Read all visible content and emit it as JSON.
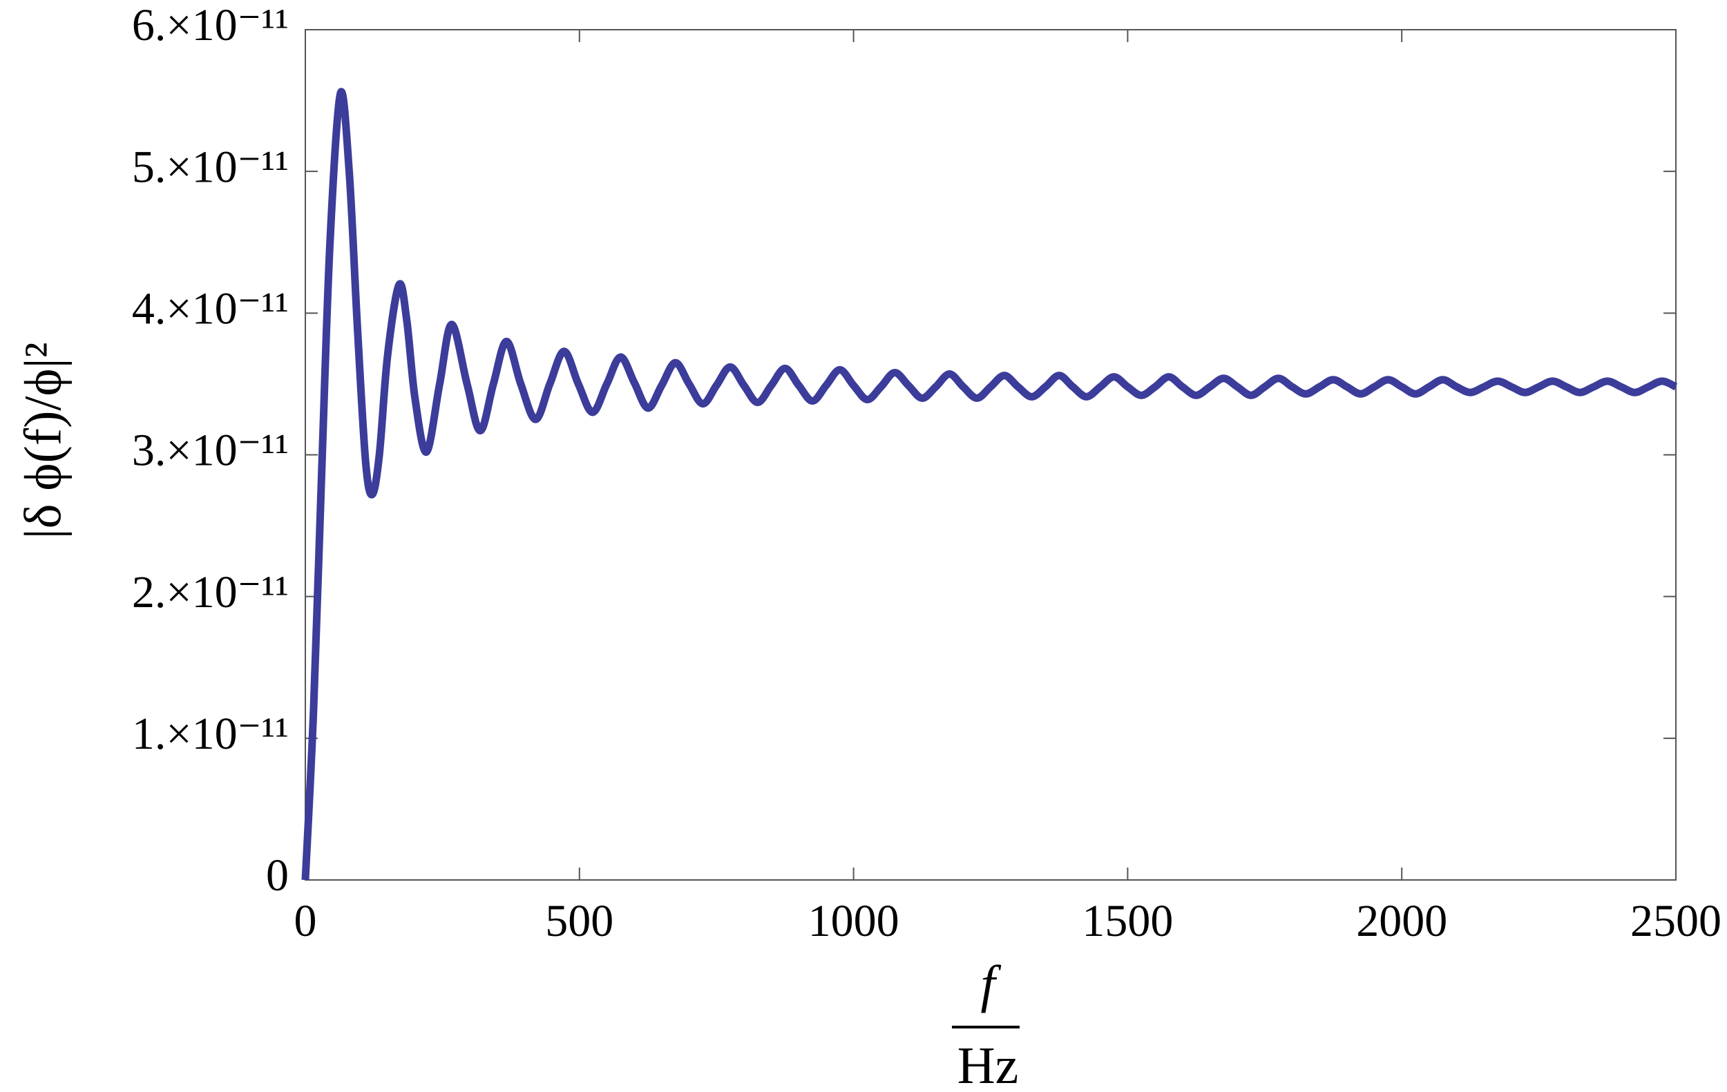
{
  "chart_data": {
    "type": "line",
    "ylabel": "|δ ϕ(f)/ϕ|²",
    "xlabel": {
      "numerator": "f",
      "denominator": "Hz"
    },
    "color": "#3c3c9a",
    "xlim": [
      0,
      2500
    ],
    "xticks": [
      0,
      500,
      1000,
      1500,
      2000,
      2500
    ],
    "ylim": [
      0,
      6e-11
    ],
    "yticks": [
      0,
      {
        "value": 1e-11,
        "label": "1.×10⁻¹¹"
      },
      {
        "value": 2e-11,
        "label": "2.×10⁻¹¹"
      },
      {
        "value": 3e-11,
        "label": "3.×10⁻¹¹"
      },
      {
        "value": 4e-11,
        "label": "4.×10⁻¹¹"
      },
      {
        "value": 5e-11,
        "label": "5.×10⁻¹¹"
      },
      {
        "value": 6e-11,
        "label": "6.×10⁻¹¹"
      }
    ],
    "x": [
      0,
      15,
      30,
      45,
      64,
      80,
      95,
      110,
      122,
      135,
      150,
      171,
      185,
      200,
      221,
      245,
      267,
      295,
      319,
      343,
      367,
      393,
      420,
      446,
      472,
      498,
      524,
      550,
      575,
      600,
      625,
      650,
      675,
      700,
      725,
      750,
      775,
      800,
      825,
      850,
      875,
      900,
      925,
      950,
      975,
      1000,
      1025,
      1050,
      1075,
      1100,
      1125,
      1150,
      1175,
      1200,
      1225,
      1250,
      1275,
      1300,
      1325,
      1350,
      1375,
      1400,
      1425,
      1450,
      1475,
      1500,
      1525,
      1550,
      1575,
      1600,
      1625,
      1650,
      1675,
      1700,
      1725,
      1750,
      1775,
      1800,
      1825,
      1850,
      1875,
      1900,
      1925,
      1950,
      1975,
      2000,
      2025,
      2050,
      2075,
      2100,
      2125,
      2150,
      2175,
      2200,
      2225,
      2250,
      2275,
      2300,
      2325,
      2350,
      2375,
      2400,
      2425,
      2450,
      2475,
      2500
    ],
    "values": [
      0,
      1.2e-11,
      2.9e-11,
      4.5e-11,
      5.55e-11,
      5e-11,
      3.9e-11,
      2.95e-11,
      2.72e-11,
      3e-11,
      3.7e-11,
      4.2e-11,
      3.95e-11,
      3.4e-11,
      3.02e-11,
      3.5e-11,
      3.92e-11,
      3.5e-11,
      3.17e-11,
      3.5e-11,
      3.8e-11,
      3.5e-11,
      3.25e-11,
      3.5e-11,
      3.73e-11,
      3.5e-11,
      3.3e-11,
      3.5e-11,
      3.69e-11,
      3.51e-11,
      3.33e-11,
      3.49e-11,
      3.65e-11,
      3.5e-11,
      3.36e-11,
      3.49e-11,
      3.62e-11,
      3.49e-11,
      3.37e-11,
      3.49e-11,
      3.61e-11,
      3.49e-11,
      3.38e-11,
      3.49e-11,
      3.6e-11,
      3.49e-11,
      3.39e-11,
      3.48e-11,
      3.58e-11,
      3.49e-11,
      3.4e-11,
      3.48e-11,
      3.57e-11,
      3.48e-11,
      3.4e-11,
      3.48e-11,
      3.56e-11,
      3.48e-11,
      3.41e-11,
      3.48e-11,
      3.56e-11,
      3.48e-11,
      3.41e-11,
      3.48e-11,
      3.55e-11,
      3.48e-11,
      3.42e-11,
      3.48e-11,
      3.55e-11,
      3.48e-11,
      3.42e-11,
      3.48e-11,
      3.54e-11,
      3.48e-11,
      3.42e-11,
      3.48e-11,
      3.54e-11,
      3.48e-11,
      3.43e-11,
      3.48e-11,
      3.53e-11,
      3.48e-11,
      3.43e-11,
      3.48e-11,
      3.53e-11,
      3.48e-11,
      3.43e-11,
      3.48e-11,
      3.53e-11,
      3.48e-11,
      3.44e-11,
      3.48e-11,
      3.52e-11,
      3.48e-11,
      3.44e-11,
      3.48e-11,
      3.52e-11,
      3.48e-11,
      3.44e-11,
      3.48e-11,
      3.52e-11,
      3.48e-11,
      3.44e-11,
      3.48e-11,
      3.52e-11,
      3.48e-11
    ]
  }
}
